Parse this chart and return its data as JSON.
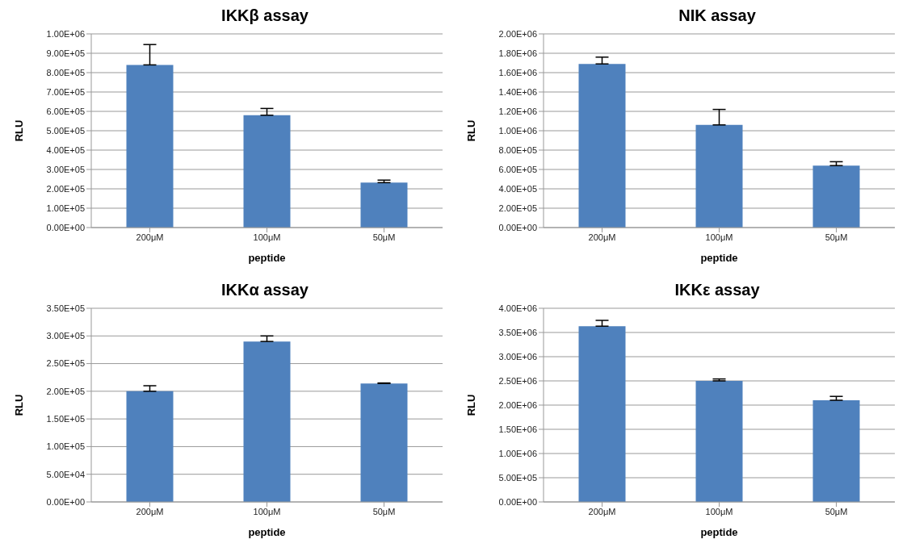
{
  "chart_data": [
    {
      "type": "bar",
      "title": "IKKβ assay",
      "xlabel": "peptide",
      "ylabel": "RLU",
      "categories": [
        "200μM",
        "100μM",
        "50μM"
      ],
      "values": [
        840000,
        580000,
        232000
      ],
      "errors": [
        [
          840000,
          945000
        ],
        [
          580000,
          615000
        ],
        [
          232000,
          245000
        ]
      ],
      "color": "#4f81bd",
      "ylim": [
        0,
        1000000
      ],
      "yticks": [
        {
          "value": 0,
          "label": "0.00E+00"
        },
        {
          "value": 100000,
          "label": "1.00E+05"
        },
        {
          "value": 200000,
          "label": "2.00E+05"
        },
        {
          "value": 300000,
          "label": "3.00E+05"
        },
        {
          "value": 400000,
          "label": "4.00E+05"
        },
        {
          "value": 500000,
          "label": "5.00E+05"
        },
        {
          "value": 600000,
          "label": "6.00E+05"
        },
        {
          "value": 700000,
          "label": "7.00E+05"
        },
        {
          "value": 800000,
          "label": "8.00E+05"
        },
        {
          "value": 900000,
          "label": "9.00E+05"
        },
        {
          "value": 1000000,
          "label": "1.00E+06"
        }
      ],
      "grid": "y"
    },
    {
      "type": "bar",
      "title": "NIK assay",
      "xlabel": "peptide",
      "ylabel": "RLU",
      "categories": [
        "200μM",
        "100μM",
        "50μM"
      ],
      "values": [
        1690000,
        1060000,
        640000
      ],
      "errors": [
        [
          1690000,
          1760000
        ],
        [
          1060000,
          1220000
        ],
        [
          640000,
          680000
        ]
      ],
      "color": "#4f81bd",
      "ylim": [
        0,
        2000000
      ],
      "yticks": [
        {
          "value": 0,
          "label": "0.00E+00"
        },
        {
          "value": 200000,
          "label": "2.00E+05"
        },
        {
          "value": 400000,
          "label": "4.00E+05"
        },
        {
          "value": 600000,
          "label": "6.00E+05"
        },
        {
          "value": 800000,
          "label": "8.00E+05"
        },
        {
          "value": 1000000,
          "label": "1.00E+06"
        },
        {
          "value": 1200000,
          "label": "1.20E+06"
        },
        {
          "value": 1400000,
          "label": "1.40E+06"
        },
        {
          "value": 1600000,
          "label": "1.60E+06"
        },
        {
          "value": 1800000,
          "label": "1.80E+06"
        },
        {
          "value": 2000000,
          "label": "2.00E+06"
        }
      ],
      "grid": "y"
    },
    {
      "type": "bar",
      "title": "IKKα assay",
      "xlabel": "peptide",
      "ylabel": "RLU",
      "categories": [
        "200μM",
        "100μM",
        "50μM"
      ],
      "values": [
        200000,
        290000,
        214000
      ],
      "errors": [
        [
          200000,
          210000
        ],
        [
          290000,
          300000
        ],
        [
          214000,
          215000
        ]
      ],
      "color": "#4f81bd",
      "ylim": [
        0,
        350000
      ],
      "yticks": [
        {
          "value": 0,
          "label": "0.00E+00"
        },
        {
          "value": 50000,
          "label": "5.00E+04"
        },
        {
          "value": 100000,
          "label": "1.00E+05"
        },
        {
          "value": 150000,
          "label": "1.50E+05"
        },
        {
          "value": 200000,
          "label": "2.00E+05"
        },
        {
          "value": 250000,
          "label": "2.50E+05"
        },
        {
          "value": 300000,
          "label": "3.00E+05"
        },
        {
          "value": 350000,
          "label": "3.50E+05"
        }
      ],
      "grid": "y"
    },
    {
      "type": "bar",
      "title": "IKKε assay",
      "xlabel": "peptide",
      "ylabel": "RLU",
      "categories": [
        "200μM",
        "100μM",
        "50μM"
      ],
      "values": [
        3630000,
        2500000,
        2100000
      ],
      "errors": [
        [
          3630000,
          3750000
        ],
        [
          2500000,
          2540000
        ],
        [
          2100000,
          2180000
        ]
      ],
      "color": "#4f81bd",
      "ylim": [
        0,
        4000000
      ],
      "yticks": [
        {
          "value": 0,
          "label": "0.00E+00"
        },
        {
          "value": 500000,
          "label": "5.00E+05"
        },
        {
          "value": 1000000,
          "label": "1.00E+06"
        },
        {
          "value": 1500000,
          "label": "1.50E+06"
        },
        {
          "value": 2000000,
          "label": "2.00E+06"
        },
        {
          "value": 2500000,
          "label": "2.50E+06"
        },
        {
          "value": 3000000,
          "label": "3.00E+06"
        },
        {
          "value": 3500000,
          "label": "3.50E+06"
        },
        {
          "value": 4000000,
          "label": "4.00E+06"
        }
      ],
      "grid": "y"
    }
  ]
}
